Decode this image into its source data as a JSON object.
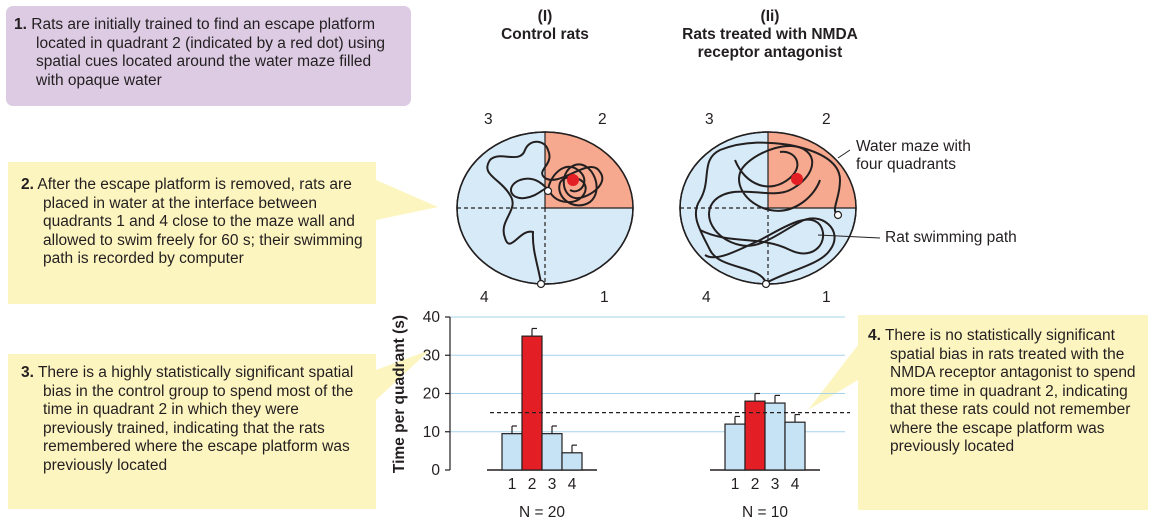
{
  "notes": {
    "n1": {
      "num": "1.",
      "text": "Rats are initially trained to find an escape platform located in quadrant 2 (indicated by a red dot) using spatial cues located around the water maze filled with opaque water"
    },
    "n2": {
      "num": "2.",
      "text": "After the escape platform is removed, rats are placed in water at the interface between quadrants 1 and 4 close to the maze wall and allowed to swim freely for 60 s; their swimming path is recorded by computer"
    },
    "n3": {
      "num": "3.",
      "text": "There is a highly statistically significant spatial bias in the control group to spend most of the time in quadrant 2 in which they were previously trained, indicating that the rats remembered where the escape platform was previously located"
    },
    "n4": {
      "num": "4.",
      "text": "There is no statistically significant spatial bias in rats treated with the NMDA receptor antagonist to spend more time in quadrant 2, indicating that these rats could not remember where the escape platform was previously located"
    }
  },
  "panels": {
    "control": {
      "roman": "(I)",
      "title": "Control rats",
      "n": "N = 20"
    },
    "nmda": {
      "roman": "(Ii)",
      "title_line1": "Rats treated with NMDA",
      "title_line2": "receptor antagonist",
      "n": "N = 10"
    }
  },
  "maze_labels": {
    "q1": "1",
    "q2": "2",
    "q3": "3",
    "q4": "4",
    "maze": "Water maze with four quadrants",
    "path": "Rat swimming path"
  },
  "colors": {
    "highlight_quadrant": "#f6a98e",
    "pool": "#d6ebf7",
    "platform": "#e31e24",
    "bar_highlight": "#e31e24",
    "bar": "#c5e3f4"
  },
  "chart_data": {
    "type": "bar",
    "ylabel": "Time per quadrant (s)",
    "ylim": [
      0,
      40
    ],
    "yticks": [
      0,
      10,
      20,
      30,
      40
    ],
    "chance_level": 15,
    "categories": [
      "1",
      "2",
      "3",
      "4"
    ],
    "groups": [
      {
        "label": "N = 20",
        "values": [
          9.5,
          35,
          9.5,
          4.5
        ],
        "errors": [
          2,
          2,
          2,
          2
        ],
        "highlight": 1
      },
      {
        "label": "N = 10",
        "values": [
          12,
          18,
          17.5,
          12.5
        ],
        "errors": [
          2,
          2,
          2,
          2
        ],
        "highlight": 1
      }
    ]
  }
}
